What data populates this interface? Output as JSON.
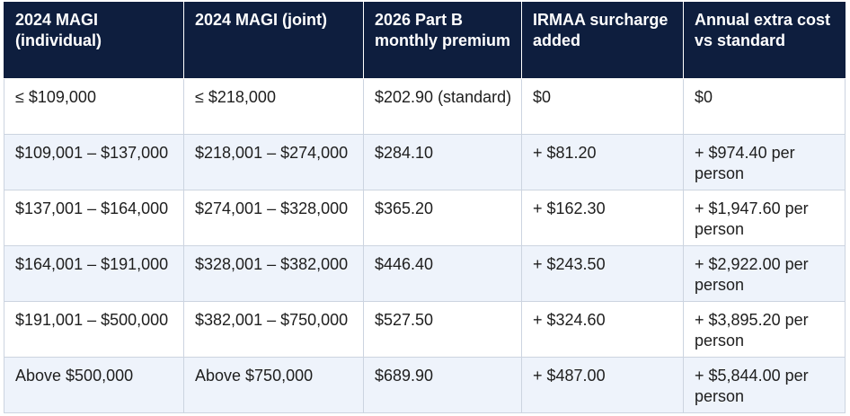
{
  "table": {
    "headers": [
      "2024 MAGI (individual)",
      "2024 MAGI (joint)",
      "2026 Part B monthly premium",
      "IRMAA surcharge added",
      "Annual extra cost vs standard"
    ],
    "rows": [
      [
        "≤ $109,000",
        "≤ $218,000",
        "$202.90 (standard)",
        "$0",
        "$0"
      ],
      [
        "$109,001 – $137,000",
        "$218,001 – $274,000",
        "$284.10",
        "+ $81.20",
        "+ $974.40 per person"
      ],
      [
        "$137,001 – $164,000",
        "$274,001 – $328,000",
        "$365.20",
        "+ $162.30",
        "+ $1,947.60 per person"
      ],
      [
        "$164,001 – $191,000",
        "$328,001 – $382,000",
        "$446.40",
        "+ $243.50",
        "+ $2,922.00 per person"
      ],
      [
        "$191,001 – $500,000",
        "$382,001 – $750,000",
        "$527.50",
        "+ $324.60",
        "+ $3,895.20 per person"
      ],
      [
        "Above $500,000",
        "Above $750,000",
        "$689.90",
        "+ $487.00",
        "+ $5,844.00 per person"
      ]
    ]
  }
}
